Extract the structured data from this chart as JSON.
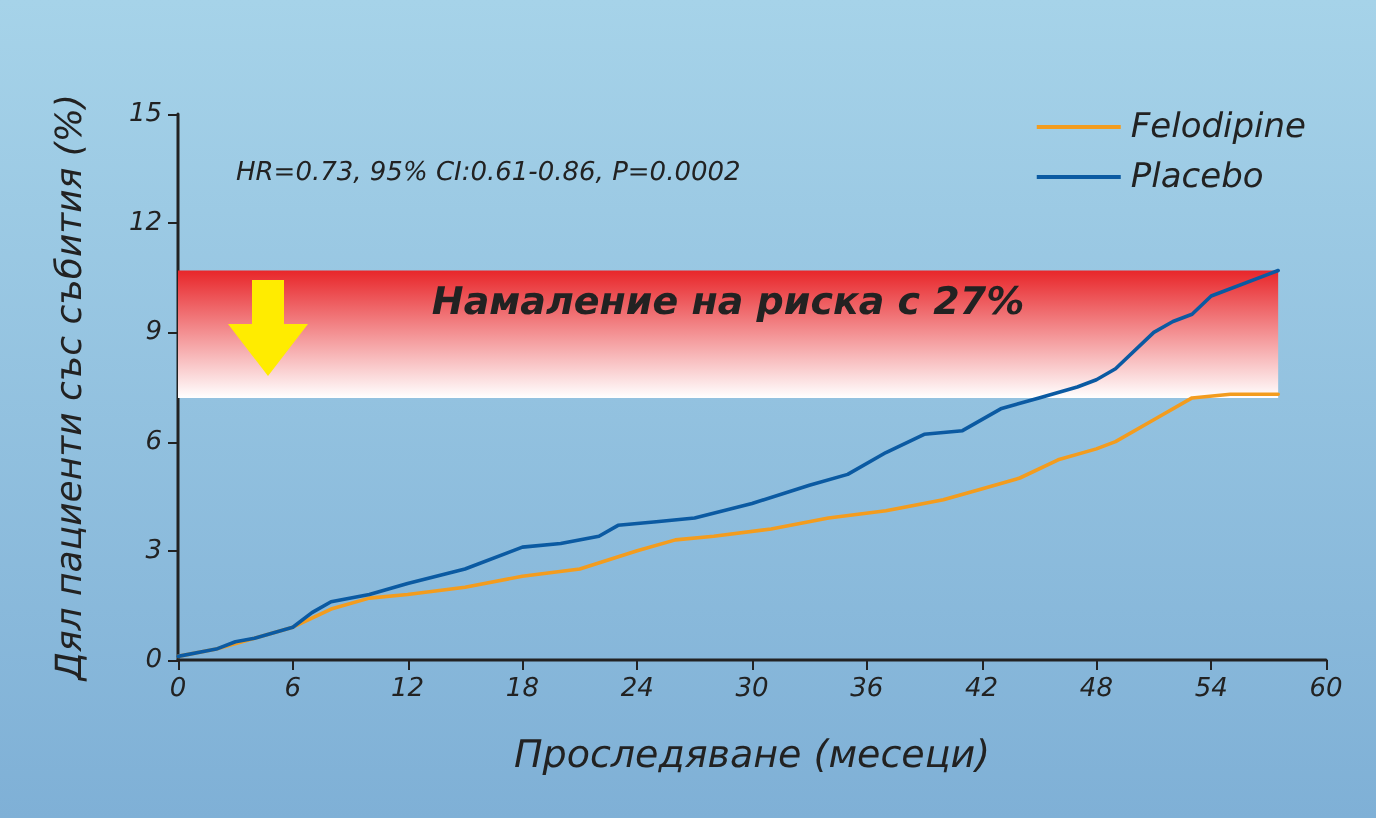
{
  "chart_data": {
    "type": "line",
    "xlabel": "Проследяване (месеци)",
    "ylabel": "Дял пациенти със събития (%)",
    "annotations": [
      "HR=0.73, 95% CI:0.61-0.86, P=0.0002"
    ],
    "xlim": [
      0,
      60
    ],
    "xticks": [
      0,
      6,
      12,
      18,
      24,
      30,
      36,
      42,
      48,
      54,
      60
    ],
    "ylim": [
      0,
      15
    ],
    "yticks": [
      0,
      3,
      6,
      9,
      12,
      15
    ],
    "grid": false,
    "legend": "top right",
    "marker": "none",
    "line_style": "solid",
    "bands": [
      {
        "axis": "y",
        "from": 7.2,
        "to": 10.7,
        "label": "Намаление на риска с 27%",
        "color": "#e8262a"
      }
    ],
    "series": [
      {
        "name": "Felodipine",
        "color": "#f39c1e",
        "x": [
          0,
          2,
          4,
          6,
          8,
          10,
          12,
          15,
          18,
          21,
          24,
          26,
          28,
          31,
          34,
          37,
          40,
          42,
          44,
          46,
          48,
          49,
          51,
          53,
          55,
          57.5
        ],
        "values": [
          0.1,
          0.3,
          0.6,
          0.9,
          1.4,
          1.7,
          1.8,
          2.0,
          2.3,
          2.5,
          3.0,
          3.3,
          3.4,
          3.6,
          3.9,
          4.1,
          4.4,
          4.7,
          5.0,
          5.5,
          5.8,
          6.0,
          6.6,
          7.2,
          7.3,
          7.3
        ]
      },
      {
        "name": "Placebo",
        "color": "#0b5aa2",
        "x": [
          0,
          2,
          3,
          4,
          6,
          7,
          8,
          10,
          12,
          15,
          18,
          20,
          22,
          23,
          25,
          27,
          30,
          33,
          35,
          37,
          39,
          41,
          43,
          45,
          47,
          48,
          49,
          51,
          52,
          53,
          54,
          57.5
        ],
        "values": [
          0.1,
          0.3,
          0.5,
          0.6,
          0.9,
          1.3,
          1.6,
          1.8,
          2.1,
          2.5,
          3.1,
          3.2,
          3.4,
          3.7,
          3.8,
          3.9,
          4.3,
          4.8,
          5.1,
          5.7,
          6.2,
          6.3,
          6.9,
          7.2,
          7.5,
          7.7,
          8.0,
          9.0,
          9.3,
          9.5,
          10.0,
          10.7
        ]
      }
    ]
  }
}
